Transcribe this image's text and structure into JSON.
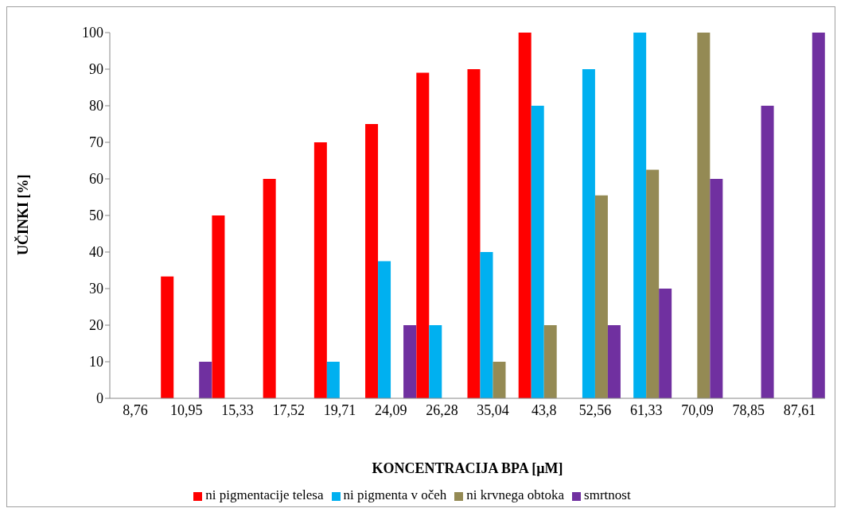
{
  "chart_data": {
    "type": "bar",
    "categories": [
      "8,76",
      "10,95",
      "15,33",
      "17,52",
      "19,71",
      "24,09",
      "26,28",
      "35,04",
      "43,8",
      "52,56",
      "61,33",
      "70,09",
      "78,85",
      "87,61"
    ],
    "series": [
      {
        "name": "ni pigmentacije telesa",
        "color": "#ff0000",
        "values": [
          null,
          33.3,
          50,
          60,
          70,
          75,
          89,
          90,
          100,
          null,
          null,
          null,
          null,
          null
        ]
      },
      {
        "name": "ni pigmenta v očeh",
        "color": "#00b0f0",
        "values": [
          null,
          null,
          null,
          null,
          10,
          37.5,
          20,
          40,
          80,
          90,
          100,
          null,
          null,
          null
        ]
      },
      {
        "name": "ni krvnega obtoka",
        "color": "#948a54",
        "values": [
          null,
          null,
          null,
          null,
          null,
          null,
          null,
          10,
          20,
          55.5,
          62.5,
          100,
          null,
          null
        ]
      },
      {
        "name": "smrtnost",
        "color": "#7030a0",
        "values": [
          null,
          10,
          null,
          null,
          null,
          20,
          null,
          null,
          null,
          20,
          30,
          60,
          80,
          100
        ]
      }
    ],
    "xlabel": "KONCENTRACIJA BPA [µM]",
    "ylabel": "UČINKI [%]",
    "ylim": [
      0,
      100
    ],
    "yticks": [
      0,
      10,
      20,
      30,
      40,
      50,
      60,
      70,
      80,
      90,
      100
    ],
    "legend": "bottom"
  }
}
